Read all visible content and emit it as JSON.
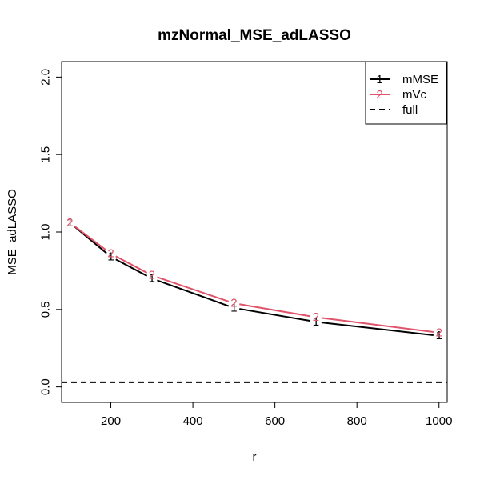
{
  "chart_data": {
    "type": "line",
    "title": "mzNormal_MSE_adLASSO",
    "xlabel": "r",
    "ylabel": "MSE_adLASSO",
    "x": [
      100,
      200,
      300,
      500,
      700,
      1000
    ],
    "xlim": [
      80,
      1020
    ],
    "ylim": [
      -0.1,
      2.1
    ],
    "xticks": [
      200,
      400,
      600,
      800,
      1000
    ],
    "yticks": [
      0.0,
      0.5,
      1.0,
      1.5,
      2.0
    ],
    "xtick_labels": [
      "200",
      "400",
      "600",
      "800",
      "1000"
    ],
    "ytick_labels": [
      "0.0",
      "0.5",
      "1.0",
      "1.5",
      "2.0"
    ],
    "grid": false,
    "legend_position": "top-right",
    "series": [
      {
        "name": "mMSE",
        "marker": "1",
        "color": "#000000",
        "linestyle": "solid",
        "values": [
          1.06,
          0.84,
          0.7,
          0.51,
          0.42,
          0.33
        ]
      },
      {
        "name": "mVc",
        "marker": "2",
        "color": "#DF536B",
        "linestyle": "solid",
        "values": [
          1.06,
          0.86,
          0.72,
          0.54,
          0.45,
          0.35
        ]
      }
    ],
    "reference_lines": [
      {
        "name": "full",
        "orientation": "horizontal",
        "y": 0.03,
        "color": "#000000",
        "linestyle": "dashed"
      }
    ]
  }
}
